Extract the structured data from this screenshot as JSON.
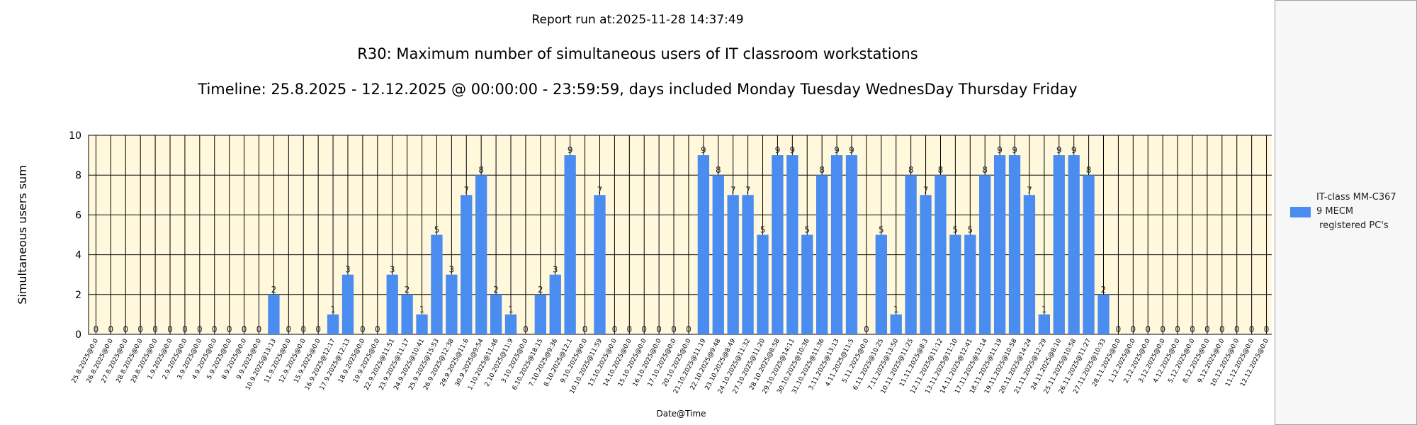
{
  "header": {
    "report_run": "Report run at:2025-11-28 14:37:49"
  },
  "colors": {
    "bar": "#4a8cf0",
    "plot_bg": "#fff8dc",
    "grid": "#000000"
  },
  "legend": {
    "placement": "right",
    "label": "IT-class MM-C367\n9 MECM\n registered PC's"
  },
  "chart_data": {
    "type": "bar",
    "title": "R30: Maximum number of simultaneous users of IT classroom workstations",
    "subtitle": "Timeline: 25.8.2025  - 12.12.2025  @  00:00:00 -  23:59:59, days included Monday Tuesday WednesDay Thursday Friday",
    "xlabel": "Date@Time",
    "ylabel": "Simultaneous users sum",
    "ylim": [
      0,
      10
    ],
    "yticks": [
      0,
      2,
      4,
      6,
      8,
      10
    ],
    "grid": true,
    "categories": [
      "25.8.2025@0:0",
      "26.8.2025@0:0",
      "27.8.2025@0:0",
      "28.8.2025@0:0",
      "29.8.2025@0:0",
      "1.9.2025@0:0",
      "2.9.2025@0:0",
      "3.9.2025@0:0",
      "4.9.2025@0:0",
      "5.9.2025@0:0",
      "8.9.2025@0:0",
      "9.9.2025@0:0",
      "10.9.2025@13:13",
      "11.9.2025@0:0",
      "12.9.2025@0:0",
      "15.9.2025@0:0",
      "16.9.2025@12:17",
      "17.9.2025@12:13",
      "18.9.2025@0:0",
      "19.9.2025@0:0",
      "22.9.2025@11:51",
      "23.9.2025@11:17",
      "24.9.2025@10:41",
      "25.9.2025@15:53",
      "26.9.2025@12:38",
      "29.9.2025@11:6",
      "30.9.2025@9:54",
      "1.10.2025@11:46",
      "2.10.2025@11:9",
      "3.10.2025@0:0",
      "6.10.2025@18:15",
      "7.10.2025@9:36",
      "8.10.2025@12:1",
      "9.10.2025@0:0",
      "10.10.2025@11:59",
      "13.10.2025@0:0",
      "14.10.2025@0:0",
      "15.10.2025@0:0",
      "16.10.2025@0:0",
      "17.10.2025@0:0",
      "20.10.2025@0:0",
      "21.10.2025@11:19",
      "22.10.2025@9:48",
      "23.10.2025@8:49",
      "24.10.2025@11:32",
      "27.10.2025@11:20",
      "28.10.2025@8:58",
      "29.10.2025@14:11",
      "30.10.2025@10:36",
      "31.10.2025@11:36",
      "3.11.2025@13:13",
      "4.11.2025@11:5",
      "5.11.2025@0:0",
      "6.11.2025@10:25",
      "7.11.2025@13:50",
      "10.11.2025@11:25",
      "11.11.2025@8:3",
      "12.11.2025@11:12",
      "13.11.2025@11:10",
      "14.11.2025@12:41",
      "17.11.2025@12:14",
      "18.11.2025@11:19",
      "19.11.2025@10:58",
      "20.11.2025@14:24",
      "21.11.2025@12:29",
      "24.11.2025@8:10",
      "25.11.2025@10:58",
      "26.11.2025@11:27",
      "27.11.2025@10:33",
      "28.11.2025@0:0",
      "1.12.2025@0:0",
      "2.12.2025@0:0",
      "3.12.2025@0:0",
      "4.12.2025@0:0",
      "5.12.2025@0:0",
      "8.12.2025@0:0",
      "9.12.2025@0:0",
      "10.12.2025@0:0",
      "11.12.2025@0:0",
      "12.12.2025@0:0"
    ],
    "series": [
      {
        "name": "IT-class MM-C367\n9 MECM\n registered PC's",
        "values": [
          0,
          0,
          0,
          0,
          0,
          0,
          0,
          0,
          0,
          0,
          0,
          0,
          2,
          0,
          0,
          0,
          1,
          3,
          0,
          0,
          3,
          2,
          1,
          5,
          3,
          7,
          8,
          2,
          1,
          0,
          2,
          3,
          9,
          0,
          7,
          0,
          0,
          0,
          0,
          0,
          0,
          9,
          8,
          7,
          7,
          5,
          9,
          9,
          5,
          8,
          9,
          9,
          0,
          5,
          1,
          8,
          7,
          8,
          5,
          5,
          8,
          9,
          9,
          7,
          1,
          9,
          9,
          8,
          2,
          0,
          0,
          0,
          0,
          0,
          0,
          0,
          0,
          0,
          0,
          0
        ]
      }
    ]
  }
}
